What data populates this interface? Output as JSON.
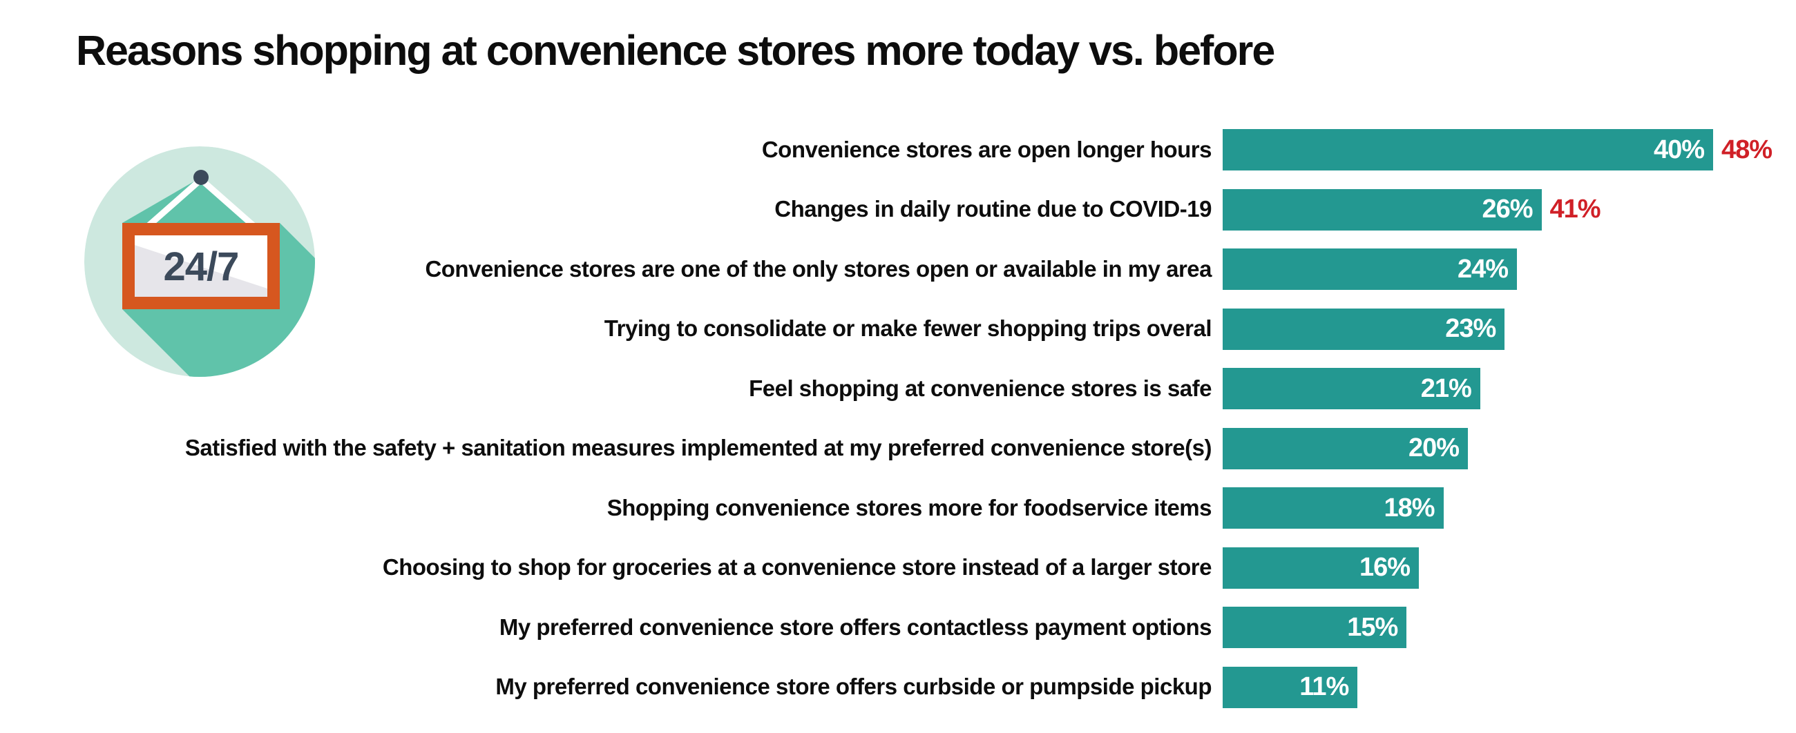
{
  "title": "Reasons shopping at convenience stores more today vs. before",
  "icon": {
    "name": "open-24-7-hanging-sign",
    "label": "24/7"
  },
  "colors": {
    "text": "#0d0d0d",
    "bar": "#239891",
    "highlight": "#D02027",
    "bar_label": "#FFFFFF",
    "circle_mint": "#CDE8DF",
    "circle_teal": "#60C3AA",
    "sign_orange": "#D6571F",
    "sign_gray": "#E6E5EA",
    "navy": "#3C4A5B"
  },
  "chart_data": {
    "type": "bar",
    "orientation": "horizontal",
    "value_unit": "%",
    "xlim": [
      0,
      45
    ],
    "grid": false,
    "legend": "none",
    "categories": [
      "Convenience stores are open longer hours",
      "Changes in daily routine due to COVID-19",
      "Convenience stores are one of the only stores open or available in my area",
      "Trying to consolidate or make fewer shopping trips overal",
      "Feel shopping at convenience stores is safe",
      "Satisfied with the safety + sanitation measures implemented at my preferred convenience store(s)",
      "Shopping convenience stores more for foodservice items",
      "Choosing to shop for groceries at a convenience store instead of a larger store",
      "My preferred convenience store offers contactless payment options",
      "My preferred convenience store offers curbside or pumpside pickup"
    ],
    "series": [
      {
        "name": "bar value (white, inside bar)",
        "color": "#239891",
        "values": [
          40,
          26,
          24,
          23,
          21,
          20,
          18,
          16,
          15,
          11
        ]
      },
      {
        "name": "highlight value (red, outside bar)",
        "color": "#D02027",
        "values": [
          48,
          41,
          null,
          null,
          null,
          null,
          null,
          null,
          null,
          null
        ]
      }
    ]
  }
}
